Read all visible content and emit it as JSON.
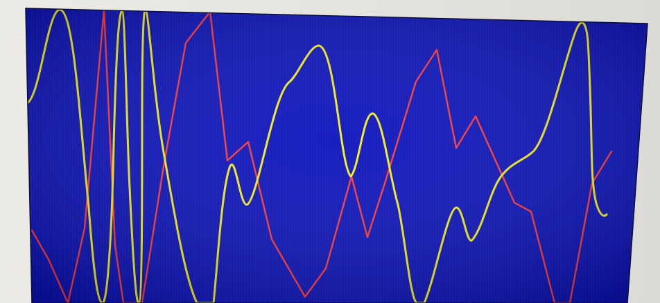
{
  "screen": {
    "background_color": "#0a10b8",
    "scanline_color": "#1a22c8"
  },
  "traces": {
    "smooth_wave": {
      "color": "#f2ee22",
      "style": "smooth"
    },
    "jagged_wave": {
      "color": "#ff3a3a",
      "style": "polyline"
    }
  }
}
